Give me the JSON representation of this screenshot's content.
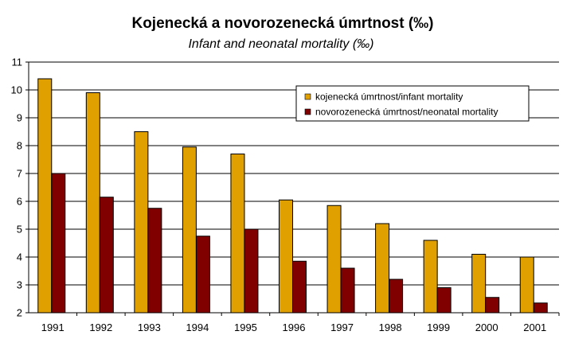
{
  "chart_data": {
    "type": "bar",
    "title": "Kojenecká a novorozenecká úmrtnost (‰)",
    "subtitle": "Infant and neonatal mortality (‰)",
    "xlabel": "",
    "ylabel": "",
    "ylim": [
      2,
      11
    ],
    "yticks": [
      "2",
      "3",
      "4",
      "5",
      "6",
      "7",
      "8",
      "9",
      "10",
      "11"
    ],
    "grid": true,
    "legend_position": "top-right",
    "categories": [
      "1991",
      "1992",
      "1993",
      "1994",
      "1995",
      "1996",
      "1997",
      "1998",
      "1999",
      "2000",
      "2001"
    ],
    "series": [
      {
        "name": "kojenecká úmrtnost/infant mortality",
        "color": "#E0A000",
        "values": [
          10.4,
          9.9,
          8.5,
          7.95,
          7.7,
          6.05,
          5.85,
          5.2,
          4.6,
          4.1,
          4.0
        ]
      },
      {
        "name": "novorozenecká úmrtnost/neonatal mortality",
        "color": "#800000",
        "values": [
          7.0,
          6.15,
          5.75,
          4.75,
          5.0,
          3.85,
          3.6,
          3.2,
          2.9,
          2.55,
          2.35
        ]
      }
    ]
  }
}
